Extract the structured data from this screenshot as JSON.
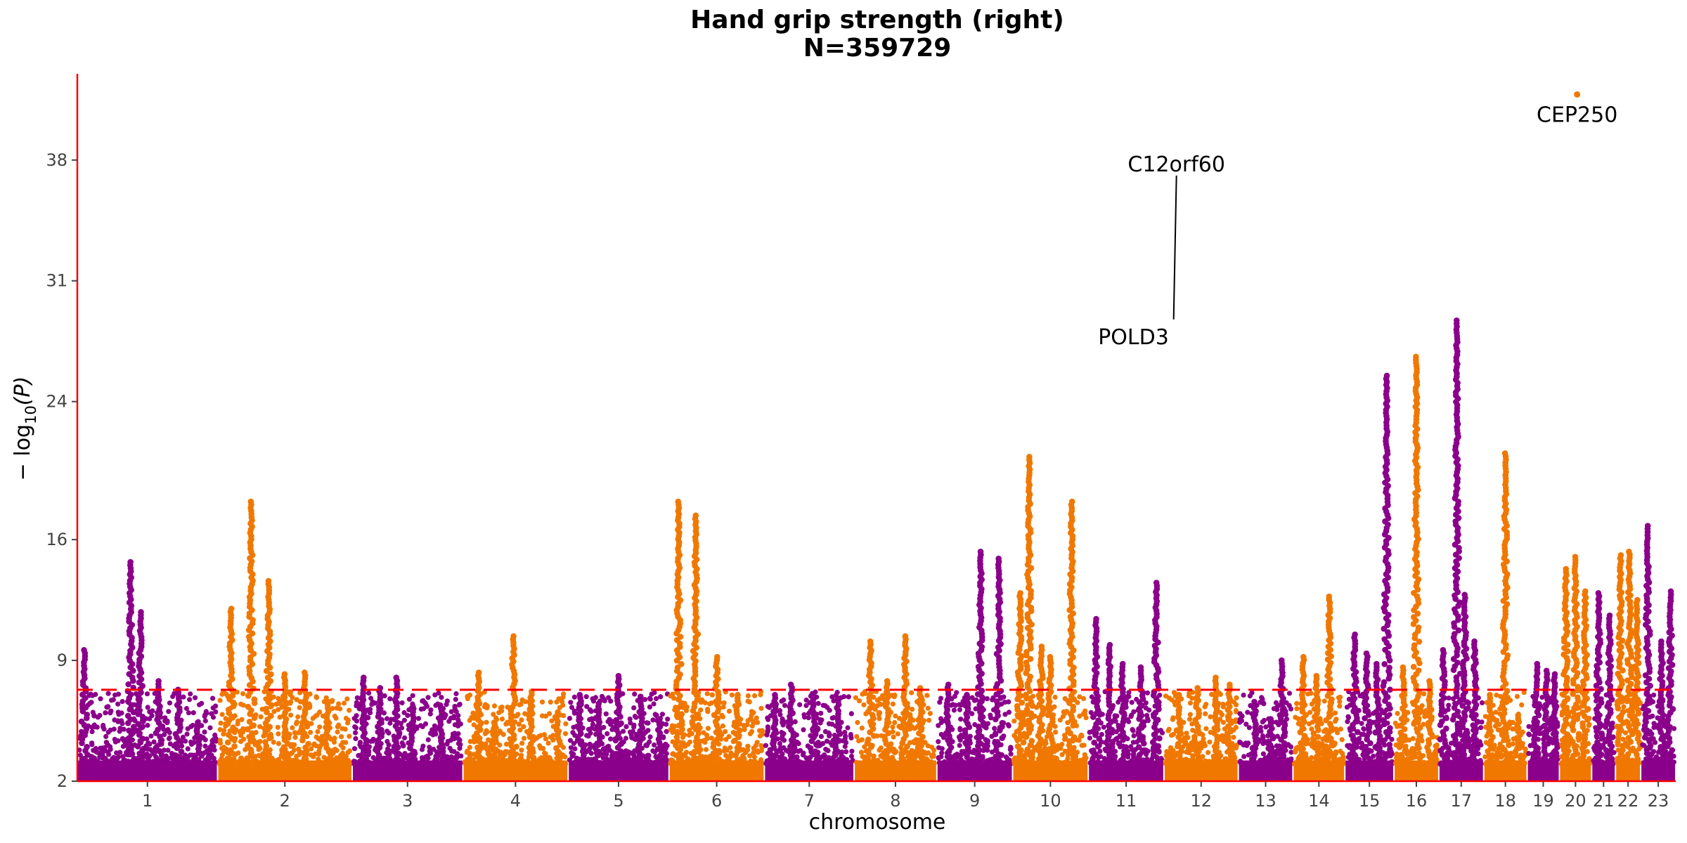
{
  "chart_data": {
    "type": "scatter",
    "title": "Hand grip strength (right)",
    "subtitle": "N=359729",
    "xlabel": "chromosome",
    "ylabel_main": "− log",
    "ylabel_sub": "10",
    "ylabel_tail": "(P)",
    "ylim": [
      2,
      43
    ],
    "yticks": [
      2,
      9,
      16,
      24,
      31,
      38
    ],
    "significance_threshold": 7.3,
    "colors": {
      "odd": "#8B008B",
      "even": "#F07800",
      "threshold": "#FF0000",
      "axis": "#FF0000"
    },
    "chromosomes": [
      {
        "label": "1",
        "start": 0.0,
        "end": 1.0,
        "peaks": [
          [
            0.05,
            9.6
          ],
          [
            0.38,
            14.7
          ],
          [
            0.45,
            11.8
          ],
          [
            0.58,
            7.8
          ],
          [
            0.72,
            7.3
          ],
          [
            0.86,
            5.4
          ]
        ]
      },
      {
        "label": "2",
        "start": 1.0,
        "end": 1.96,
        "peaks": [
          [
            0.1,
            12.0
          ],
          [
            0.25,
            18.2
          ],
          [
            0.38,
            13.6
          ],
          [
            0.5,
            8.2
          ],
          [
            0.65,
            8.3
          ],
          [
            0.82,
            6.6
          ]
        ]
      },
      {
        "label": "3",
        "start": 1.96,
        "end": 2.75,
        "peaks": [
          [
            0.1,
            8.0
          ],
          [
            0.25,
            7.4
          ],
          [
            0.4,
            8.0
          ],
          [
            0.55,
            6.2
          ],
          [
            0.8,
            6.4
          ]
        ]
      },
      {
        "label": "4",
        "start": 2.75,
        "end": 3.5,
        "peaks": [
          [
            0.15,
            8.3
          ],
          [
            0.3,
            5.4
          ],
          [
            0.48,
            10.4
          ],
          [
            0.65,
            7.2
          ],
          [
            0.9,
            6.0
          ]
        ]
      },
      {
        "label": "5",
        "start": 3.5,
        "end": 4.22,
        "peaks": [
          [
            0.12,
            7.0
          ],
          [
            0.3,
            6.5
          ],
          [
            0.5,
            8.1
          ],
          [
            0.72,
            6.9
          ],
          [
            0.9,
            5.5
          ]
        ]
      },
      {
        "label": "6",
        "start": 4.22,
        "end": 4.9,
        "peaks": [
          [
            0.1,
            18.2
          ],
          [
            0.28,
            17.4
          ],
          [
            0.5,
            9.2
          ],
          [
            0.72,
            7.0
          ]
        ]
      },
      {
        "label": "7",
        "start": 4.9,
        "end": 5.54,
        "peaks": [
          [
            0.12,
            7.0
          ],
          [
            0.3,
            7.6
          ],
          [
            0.55,
            6.9
          ],
          [
            0.82,
            6.8
          ]
        ]
      },
      {
        "label": "8",
        "start": 5.54,
        "end": 6.13,
        "peaks": [
          [
            0.2,
            10.1
          ],
          [
            0.4,
            7.8
          ],
          [
            0.62,
            10.4
          ],
          [
            0.8,
            7.4
          ]
        ]
      },
      {
        "label": "9",
        "start": 6.13,
        "end": 6.67,
        "peaks": [
          [
            0.15,
            7.6
          ],
          [
            0.4,
            7.0
          ],
          [
            0.58,
            15.3
          ],
          [
            0.82,
            14.9
          ]
        ]
      },
      {
        "label": "10",
        "start": 6.67,
        "end": 7.21,
        "peaks": [
          [
            0.1,
            12.9
          ],
          [
            0.22,
            20.8
          ],
          [
            0.38,
            9.8
          ],
          [
            0.5,
            9.2
          ],
          [
            0.78,
            18.2
          ]
        ]
      },
      {
        "label": "11",
        "start": 7.21,
        "end": 7.75,
        "peaks": [
          [
            0.1,
            11.4
          ],
          [
            0.28,
            9.9
          ],
          [
            0.45,
            8.8
          ],
          [
            0.7,
            8.6
          ],
          [
            0.9,
            13.5
          ]
        ]
      },
      {
        "label": "12",
        "start": 7.75,
        "end": 8.28,
        "peaks": [
          [
            0.2,
            7.0
          ],
          [
            0.45,
            7.4
          ],
          [
            0.7,
            8.0
          ],
          [
            0.88,
            7.6
          ]
        ]
      },
      {
        "label": "13",
        "start": 8.28,
        "end": 8.67,
        "peaks": [
          [
            0.3,
            6.6
          ],
          [
            0.6,
            5.6
          ],
          [
            0.8,
            9.0
          ]
        ]
      },
      {
        "label": "14",
        "start": 8.67,
        "end": 9.04,
        "peaks": [
          [
            0.2,
            9.2
          ],
          [
            0.45,
            8.1
          ],
          [
            0.7,
            12.7
          ]
        ]
      },
      {
        "label": "15",
        "start": 9.04,
        "end": 9.39,
        "peaks": [
          [
            0.2,
            10.5
          ],
          [
            0.45,
            9.4
          ],
          [
            0.65,
            8.8
          ],
          [
            0.85,
            25.5
          ]
        ]
      },
      {
        "label": "16",
        "start": 9.39,
        "end": 9.71,
        "peaks": [
          [
            0.2,
            8.6
          ],
          [
            0.5,
            26.6
          ],
          [
            0.8,
            7.8
          ]
        ]
      },
      {
        "label": "17",
        "start": 9.71,
        "end": 10.03,
        "peaks": [
          [
            0.1,
            9.6
          ],
          [
            0.4,
            28.7
          ],
          [
            0.58,
            12.8
          ],
          [
            0.8,
            10.1
          ]
        ]
      },
      {
        "label": "18",
        "start": 10.03,
        "end": 10.34,
        "peaks": [
          [
            0.15,
            7.0
          ],
          [
            0.5,
            21.0
          ],
          [
            0.8,
            5.8
          ]
        ]
      },
      {
        "label": "19",
        "start": 10.34,
        "end": 10.57,
        "peaks": [
          [
            0.3,
            8.8
          ],
          [
            0.6,
            8.4
          ],
          [
            0.85,
            8.2
          ]
        ]
      },
      {
        "label": "20",
        "start": 10.57,
        "end": 10.8,
        "peaks": [
          [
            0.2,
            14.3
          ],
          [
            0.5,
            15.0
          ],
          [
            0.8,
            13.0
          ]
        ]
      },
      {
        "label": "21",
        "start": 10.8,
        "end": 10.97,
        "peaks": [
          [
            0.3,
            12.9
          ],
          [
            0.75,
            11.6
          ]
        ]
      },
      {
        "label": "22",
        "start": 10.97,
        "end": 11.15,
        "peaks": [
          [
            0.2,
            15.1
          ],
          [
            0.55,
            15.3
          ],
          [
            0.85,
            12.5
          ]
        ]
      },
      {
        "label": "23",
        "start": 11.15,
        "end": 11.4,
        "peaks": [
          [
            0.2,
            16.8
          ],
          [
            0.6,
            10.1
          ],
          [
            0.85,
            13.0
          ]
        ]
      }
    ],
    "annotations": [
      {
        "text": "POLD3",
        "chrom": "11",
        "pos": 0.82,
        "value": 26.6
      },
      {
        "text": "C12orf60",
        "chrom": "12",
        "pos": 0.13,
        "value": 28.6
      },
      {
        "text": "CEP250",
        "chrom": "20",
        "pos": 0.55,
        "value": 41.6
      }
    ]
  }
}
